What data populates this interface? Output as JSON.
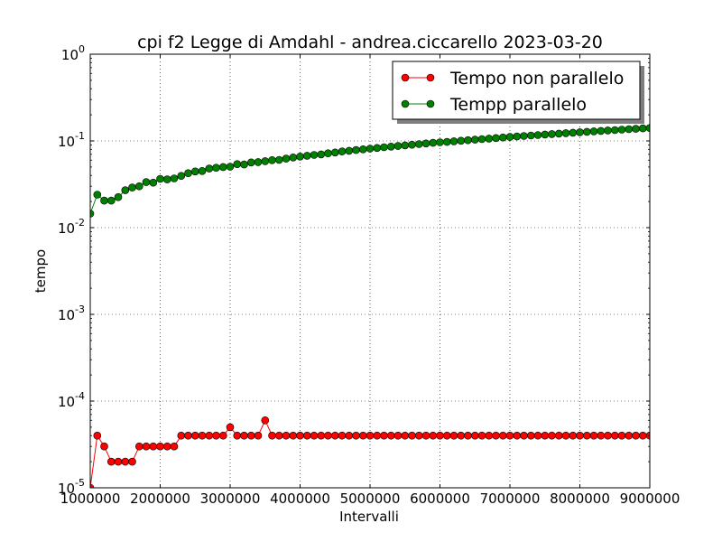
{
  "chart_data": {
    "type": "line",
    "title": "cpi f2  Legge di Amdahl  -  andrea.ciccarello  2023-03-20",
    "xlabel": "Intervalli",
    "ylabel": "tempo",
    "xlim": [
      1000000,
      9000000
    ],
    "ylim": [
      1e-05,
      1
    ],
    "yscale": "log",
    "grid": true,
    "legend_position": "top-right",
    "x_ticks": [
      "1000000",
      "2000000",
      "3000000",
      "4000000",
      "5000000",
      "6000000",
      "7000000",
      "8000000",
      "9000000"
    ],
    "y_ticks": [
      {
        "base": "10",
        "exp": "-5"
      },
      {
        "base": "10",
        "exp": "-4"
      },
      {
        "base": "10",
        "exp": "-3"
      },
      {
        "base": "10",
        "exp": "-2"
      },
      {
        "base": "10",
        "exp": "-1"
      },
      {
        "base": "10",
        "exp": "0"
      }
    ],
    "x": [
      1000000,
      1100000,
      1200000,
      1300000,
      1400000,
      1500000,
      1600000,
      1700000,
      1800000,
      1900000,
      2000000,
      2100000,
      2200000,
      2300000,
      2400000,
      2500000,
      2600000,
      2700000,
      2800000,
      2900000,
      3000000,
      3100000,
      3200000,
      3300000,
      3400000,
      3500000,
      3600000,
      3700000,
      3800000,
      3900000,
      4000000,
      4100000,
      4200000,
      4300000,
      4400000,
      4500000,
      4600000,
      4700000,
      4800000,
      4900000,
      5000000,
      5100000,
      5200000,
      5300000,
      5400000,
      5500000,
      5600000,
      5700000,
      5800000,
      5900000,
      6000000,
      6100000,
      6200000,
      6300000,
      6400000,
      6500000,
      6600000,
      6700000,
      6800000,
      6900000,
      7000000,
      7100000,
      7200000,
      7300000,
      7400000,
      7500000,
      7600000,
      7700000,
      7800000,
      7900000,
      8000000,
      8100000,
      8200000,
      8300000,
      8400000,
      8500000,
      8600000,
      8700000,
      8800000,
      8900000,
      9000000
    ],
    "series": [
      {
        "name": "Tempo non parallelo",
        "color": "#ff0000",
        "values": [
          1e-05,
          4e-05,
          3e-05,
          2e-05,
          2e-05,
          2e-05,
          2e-05,
          3e-05,
          3e-05,
          3e-05,
          3e-05,
          3e-05,
          3e-05,
          4e-05,
          4e-05,
          4e-05,
          4e-05,
          4e-05,
          4e-05,
          4e-05,
          5e-05,
          4e-05,
          4e-05,
          4e-05,
          4e-05,
          6e-05,
          4e-05,
          4e-05,
          4e-05,
          4e-05,
          4e-05,
          4e-05,
          4e-05,
          4e-05,
          4e-05,
          4e-05,
          4e-05,
          4e-05,
          4e-05,
          4e-05,
          4e-05,
          4e-05,
          4e-05,
          4e-05,
          4e-05,
          4e-05,
          4e-05,
          4e-05,
          4e-05,
          4e-05,
          4e-05,
          4e-05,
          4e-05,
          4e-05,
          4e-05,
          4e-05,
          4e-05,
          4e-05,
          4e-05,
          4e-05,
          4e-05,
          4e-05,
          4e-05,
          4e-05,
          4e-05,
          4e-05,
          4e-05,
          4e-05,
          4e-05,
          4e-05,
          4e-05,
          4e-05,
          4e-05,
          4e-05,
          4e-05,
          4e-05,
          4e-05,
          4e-05,
          4e-05,
          4e-05,
          4e-05
        ]
      },
      {
        "name": "Tempp parallelo",
        "color": "#008000",
        "values": [
          0.0145,
          0.024,
          0.0205,
          0.0205,
          0.0225,
          0.027,
          0.029,
          0.03,
          0.0335,
          0.033,
          0.0365,
          0.036,
          0.037,
          0.0395,
          0.0425,
          0.0445,
          0.045,
          0.048,
          0.049,
          0.05,
          0.0505,
          0.054,
          0.0535,
          0.0565,
          0.057,
          0.0585,
          0.06,
          0.0605,
          0.0625,
          0.0645,
          0.066,
          0.0675,
          0.069,
          0.07,
          0.072,
          0.0735,
          0.0755,
          0.077,
          0.0785,
          0.08,
          0.0815,
          0.083,
          0.0845,
          0.086,
          0.0875,
          0.089,
          0.0905,
          0.092,
          0.0935,
          0.095,
          0.0965,
          0.0975,
          0.099,
          0.1005,
          0.102,
          0.1035,
          0.105,
          0.1065,
          0.108,
          0.1095,
          0.111,
          0.1125,
          0.114,
          0.1155,
          0.117,
          0.1185,
          0.12,
          0.1215,
          0.123,
          0.1245,
          0.126,
          0.1275,
          0.129,
          0.1305,
          0.132,
          0.1335,
          0.135,
          0.1365,
          0.138,
          0.1395,
          0.141
        ]
      }
    ]
  }
}
